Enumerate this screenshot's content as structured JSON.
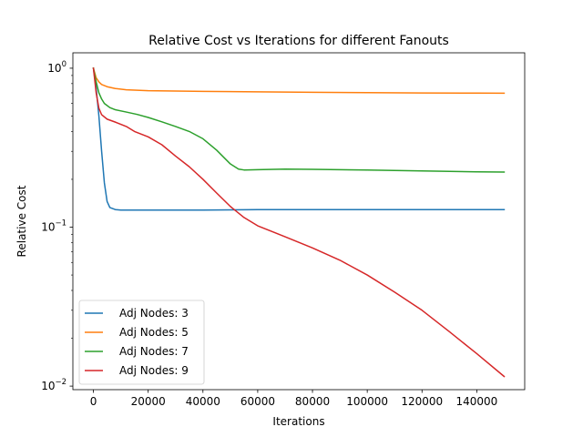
{
  "chart_data": {
    "type": "line",
    "title": "Relative Cost vs Iterations for different Fanouts",
    "xlabel": "Iterations",
    "ylabel": "Relative Cost",
    "xlim": [
      -7500,
      157500
    ],
    "ylim": [
      0.0095,
      1.25
    ],
    "yscale": "log",
    "grid": false,
    "legend_position": "lower-left",
    "x_ticks": [
      0,
      20000,
      40000,
      60000,
      80000,
      100000,
      120000,
      140000
    ],
    "x_tick_labels": [
      "0",
      "20000",
      "40000",
      "60000",
      "80000",
      "100000",
      "120000",
      "140000"
    ],
    "y_ticks": [
      0.01,
      0.1,
      1
    ],
    "y_tick_labels": [
      {
        "base": "10",
        "exp": "−2"
      },
      {
        "base": "10",
        "exp": "−1"
      },
      {
        "base": "10",
        "exp": "0"
      }
    ],
    "series": [
      {
        "name": "Adj Nodes: 3",
        "color": "#1f77b4",
        "points": [
          [
            0,
            1.0
          ],
          [
            1000,
            0.75
          ],
          [
            2000,
            0.5
          ],
          [
            3000,
            0.3
          ],
          [
            4000,
            0.19
          ],
          [
            5000,
            0.145
          ],
          [
            6000,
            0.133
          ],
          [
            8000,
            0.129
          ],
          [
            10000,
            0.128
          ],
          [
            15000,
            0.128
          ],
          [
            20000,
            0.128
          ],
          [
            40000,
            0.128
          ],
          [
            60000,
            0.129
          ],
          [
            80000,
            0.129
          ],
          [
            100000,
            0.129
          ],
          [
            120000,
            0.129
          ],
          [
            140000,
            0.129
          ],
          [
            150000,
            0.129
          ]
        ]
      },
      {
        "name": "Adj Nodes: 5",
        "color": "#ff7f0e",
        "points": [
          [
            0,
            1.0
          ],
          [
            1000,
            0.87
          ],
          [
            2000,
            0.82
          ],
          [
            3000,
            0.79
          ],
          [
            5000,
            0.765
          ],
          [
            8000,
            0.745
          ],
          [
            12000,
            0.732
          ],
          [
            20000,
            0.722
          ],
          [
            40000,
            0.715
          ],
          [
            60000,
            0.71
          ],
          [
            80000,
            0.706
          ],
          [
            100000,
            0.702
          ],
          [
            120000,
            0.699
          ],
          [
            140000,
            0.697
          ],
          [
            150000,
            0.696
          ]
        ]
      },
      {
        "name": "Adj Nodes: 7",
        "color": "#2ca02c",
        "points": [
          [
            0,
            1.0
          ],
          [
            1000,
            0.82
          ],
          [
            2000,
            0.7
          ],
          [
            3000,
            0.64
          ],
          [
            4000,
            0.6
          ],
          [
            6000,
            0.565
          ],
          [
            8000,
            0.548
          ],
          [
            12000,
            0.53
          ],
          [
            16000,
            0.512
          ],
          [
            20000,
            0.49
          ],
          [
            25000,
            0.46
          ],
          [
            30000,
            0.43
          ],
          [
            35000,
            0.4
          ],
          [
            40000,
            0.36
          ],
          [
            45000,
            0.305
          ],
          [
            50000,
            0.25
          ],
          [
            53000,
            0.232
          ],
          [
            55000,
            0.229
          ],
          [
            60000,
            0.23
          ],
          [
            70000,
            0.232
          ],
          [
            80000,
            0.231
          ],
          [
            100000,
            0.229
          ],
          [
            120000,
            0.226
          ],
          [
            140000,
            0.223
          ],
          [
            150000,
            0.222
          ]
        ]
      },
      {
        "name": "Adj Nodes: 9",
        "color": "#d62728",
        "points": [
          [
            0,
            1.0
          ],
          [
            1000,
            0.7
          ],
          [
            2000,
            0.56
          ],
          [
            3000,
            0.51
          ],
          [
            5000,
            0.478
          ],
          [
            8000,
            0.458
          ],
          [
            12000,
            0.43
          ],
          [
            15000,
            0.4
          ],
          [
            20000,
            0.37
          ],
          [
            25000,
            0.33
          ],
          [
            30000,
            0.28
          ],
          [
            35000,
            0.24
          ],
          [
            40000,
            0.2
          ],
          [
            45000,
            0.164
          ],
          [
            50000,
            0.135
          ],
          [
            55000,
            0.115
          ],
          [
            60000,
            0.102
          ],
          [
            70000,
            0.087
          ],
          [
            80000,
            0.074
          ],
          [
            90000,
            0.062
          ],
          [
            100000,
            0.05
          ],
          [
            110000,
            0.039
          ],
          [
            120000,
            0.03
          ],
          [
            130000,
            0.022
          ],
          [
            140000,
            0.016
          ],
          [
            150000,
            0.0115
          ]
        ]
      }
    ]
  }
}
